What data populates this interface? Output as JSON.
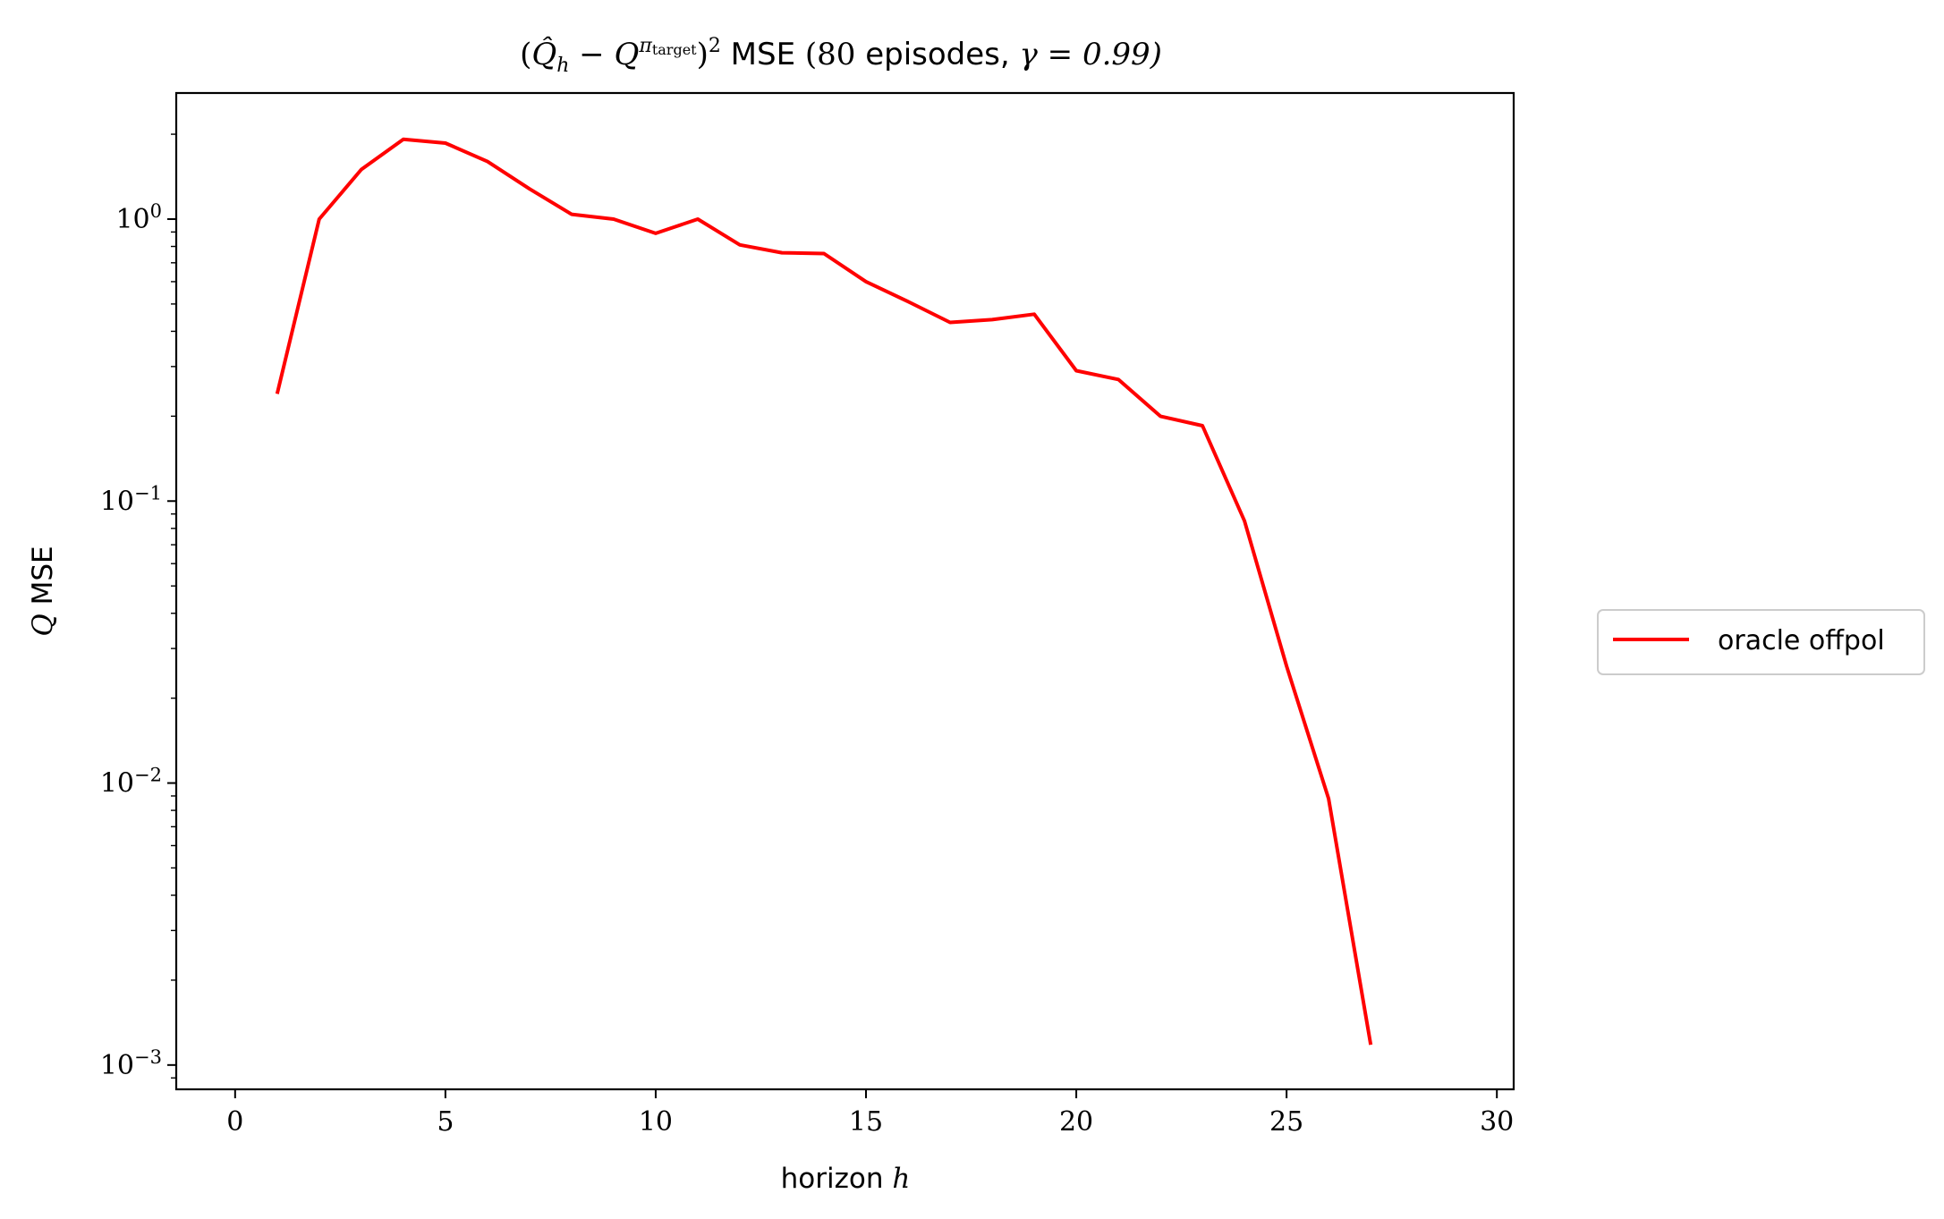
{
  "chart_data": {
    "type": "line",
    "title": "(Q̂ₕ − Q^πtarget)² MSE (80 episodes, γ = 0.99)",
    "xlabel": "horizon h",
    "ylabel": "Q MSE",
    "xlim": [
      -1.4,
      30.4
    ],
    "ylim": [
      0.00082,
      2.8
    ],
    "yscale": "log",
    "grid": false,
    "legend_position": "right",
    "x_ticks": [
      0,
      5,
      10,
      15,
      20,
      25,
      30
    ],
    "x_tick_labels": [
      "0",
      "5",
      "10",
      "15",
      "20",
      "25",
      "30"
    ],
    "y_ticks": [
      1,
      0.1,
      0.01,
      0.001
    ],
    "y_tick_labels": [
      "10^0",
      "10^-1",
      "10^-2",
      "10^-3"
    ],
    "series": [
      {
        "name": "oracle offpol",
        "color": "#ff0000",
        "x": [
          1,
          2,
          3,
          4,
          5,
          6,
          7,
          8,
          9,
          10,
          11,
          12,
          13,
          14,
          15,
          16,
          17,
          18,
          19,
          20,
          21,
          22,
          23,
          24,
          25,
          26,
          27
        ],
        "y": [
          0.24,
          1.0,
          1.5,
          1.92,
          1.86,
          1.6,
          1.28,
          1.04,
          1.0,
          0.89,
          1.0,
          0.81,
          0.76,
          0.755,
          0.6,
          0.51,
          0.43,
          0.44,
          0.46,
          0.29,
          0.27,
          0.2,
          0.185,
          0.085,
          0.026,
          0.0088,
          0.00118
        ]
      }
    ]
  },
  "title_parts": {
    "open_paren": "(",
    "q_hat": "Q̂",
    "h_sub": "h",
    "minus": " − Q",
    "pi_sup": "π",
    "target_sub": "target",
    "close_sq": ")",
    "sq": "2",
    "rest_sans_1": " MSE ",
    "rest_serif_1": "(80",
    "rest_sans_2": " episodes, ",
    "rest_serif_2": "γ = 0.99)"
  },
  "ylabel_parts": {
    "q": "Q",
    "mse": " MSE"
  },
  "xlabel_parts": {
    "text": "horizon ",
    "h": "h"
  },
  "y_tick_parts": [
    {
      "base": "10",
      "exp": "0"
    },
    {
      "base": "10",
      "exp": "−1"
    },
    {
      "base": "10",
      "exp": "−2"
    },
    {
      "base": "10",
      "exp": "−3"
    }
  ]
}
